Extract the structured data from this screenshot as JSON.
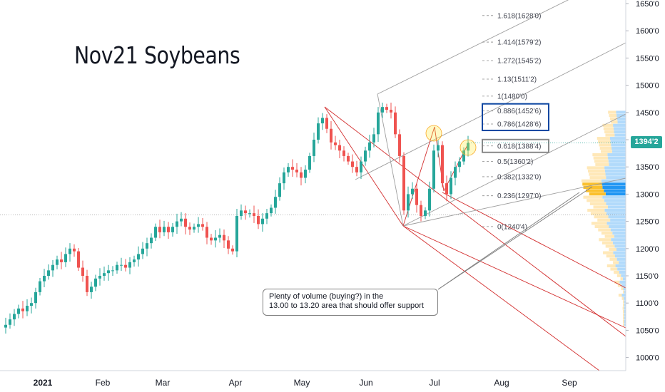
{
  "title": "Nov21 Soybeans",
  "annotation": {
    "line1": "Plenty of volume (buying?) in the",
    "line2": "13.00 to 13.20 area that should offer support"
  },
  "current_price": "1394'2",
  "colors": {
    "up": "#26a69a",
    "down": "#ef5350",
    "pitchfork_red": "#d32f2f",
    "pitchfork_grey": "#9e9e9e",
    "fib_box_blue": "#0d47a1",
    "fib_box_grey": "#888888",
    "highlight": "#ffeb3b",
    "vp_up": "#90caf9",
    "vp_down": "#ffe0a0",
    "vp_poc_up": "#2196f3",
    "vp_poc_down": "#fbc02d"
  },
  "chart_data": {
    "type": "candlestick",
    "y_axis": {
      "range": [
        995,
        1650
      ],
      "ticks": [
        "1650'0",
        "1600'0",
        "1550'0",
        "1500'0",
        "1450'0",
        "1400'0",
        "1350'0",
        "1300'0",
        "1250'0",
        "1200'0",
        "1150'0",
        "1100'0",
        "1050'0",
        "1000'0"
      ],
      "values": [
        1650,
        1600,
        1550,
        1500,
        1450,
        1400,
        1350,
        1300,
        1250,
        1200,
        1150,
        1100,
        1050,
        1000
      ]
    },
    "x_axis": {
      "labels": [
        "2021",
        "Feb",
        "Mar",
        "Apr",
        "May",
        "Jun",
        "Jul",
        "Aug",
        "Sep"
      ]
    },
    "last_price": 1394.25,
    "fib_levels": [
      {
        "ratio": "1.618",
        "label": "1.618(1628'0)",
        "value": 1628
      },
      {
        "ratio": "1.414",
        "label": "1.414(1579'2)",
        "value": 1579.25
      },
      {
        "ratio": "1.272",
        "label": "1.272(1545'2)",
        "value": 1545.25
      },
      {
        "ratio": "1.13",
        "label": "1.13(1511'2)",
        "value": 1511.25
      },
      {
        "ratio": "1",
        "label": "1(1480'0)",
        "value": 1480
      },
      {
        "ratio": "0.886",
        "label": "0.886(1452'6)",
        "value": 1452.75
      },
      {
        "ratio": "0.786",
        "label": "0.786(1428'6)",
        "value": 1428.75
      },
      {
        "ratio": "0.618",
        "label": "0.618(1388'4)",
        "value": 1388.5
      },
      {
        "ratio": "0.5",
        "label": "0.5(1360'2)",
        "value": 1360.25
      },
      {
        "ratio": "0.382",
        "label": "0.382(1332'0)",
        "value": 1332
      },
      {
        "ratio": "0.236",
        "label": "0.236(1297'0)",
        "value": 1297
      },
      {
        "ratio": "0",
        "label": "0(1240'4)",
        "value": 1240.5
      }
    ],
    "highlighted_fib_levels": {
      "blue_box": [
        "0.886",
        "0.786"
      ],
      "grey_box": [
        "0.618"
      ]
    },
    "reference_price": 1262,
    "volume_support_zone": [
      1300,
      1320
    ]
  }
}
